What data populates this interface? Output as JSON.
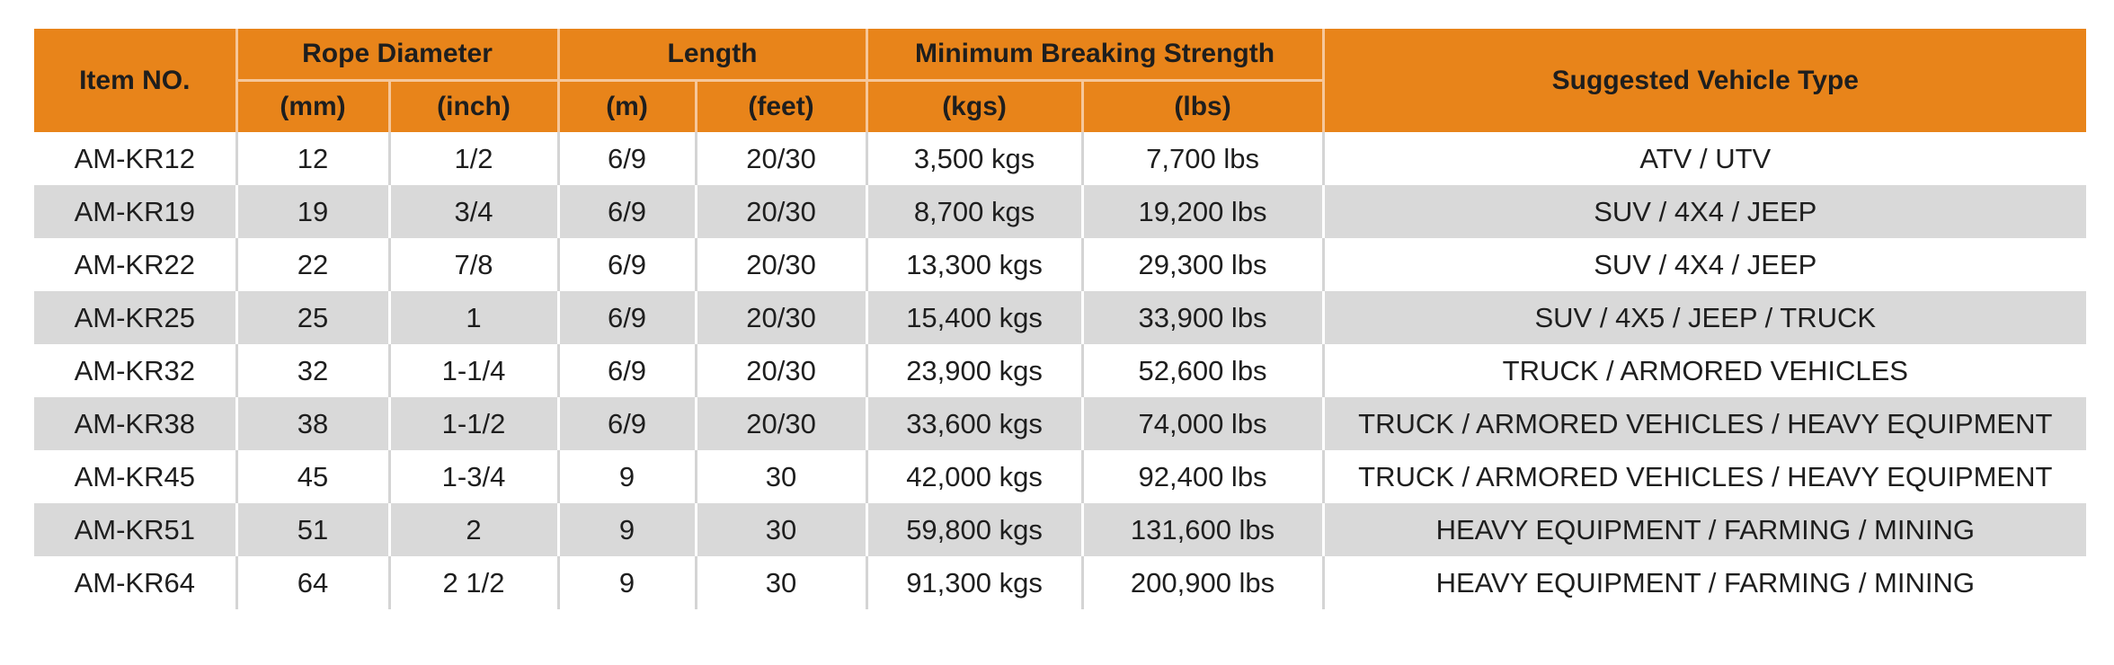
{
  "headers": {
    "item_no": "Item NO.",
    "rope_diameter": "Rope Diameter",
    "length": "Length",
    "min_breaking_strength": "Minimum Breaking Strength",
    "vehicle_type": "Suggested Vehicle Type",
    "sub": {
      "mm": "(mm)",
      "inch": "(inch)",
      "m": "(m)",
      "feet": "(feet)",
      "kgs": "(kgs)",
      "lbs": "(lbs)"
    }
  },
  "rows": [
    {
      "item": "AM-KR12",
      "mm": "12",
      "inch": "1/2",
      "m": "6/9",
      "feet": "20/30",
      "kgs": "3,500 kgs",
      "lbs": "7,700 lbs",
      "vehicle": "ATV / UTV"
    },
    {
      "item": "AM-KR19",
      "mm": "19",
      "inch": "3/4",
      "m": "6/9",
      "feet": "20/30",
      "kgs": "8,700 kgs",
      "lbs": "19,200 lbs",
      "vehicle": "SUV / 4X4 / JEEP"
    },
    {
      "item": "AM-KR22",
      "mm": "22",
      "inch": "7/8",
      "m": "6/9",
      "feet": "20/30",
      "kgs": "13,300 kgs",
      "lbs": "29,300 lbs",
      "vehicle": "SUV / 4X4 / JEEP"
    },
    {
      "item": "AM-KR25",
      "mm": "25",
      "inch": "1",
      "m": "6/9",
      "feet": "20/30",
      "kgs": "15,400 kgs",
      "lbs": "33,900 lbs",
      "vehicle": "SUV / 4X5 / JEEP / TRUCK"
    },
    {
      "item": "AM-KR32",
      "mm": "32",
      "inch": "1-1/4",
      "m": "6/9",
      "feet": "20/30",
      "kgs": "23,900 kgs",
      "lbs": "52,600 lbs",
      "vehicle": "TRUCK / ARMORED VEHICLES"
    },
    {
      "item": "AM-KR38",
      "mm": "38",
      "inch": "1-1/2",
      "m": "6/9",
      "feet": "20/30",
      "kgs": "33,600 kgs",
      "lbs": "74,000 lbs",
      "vehicle": "TRUCK / ARMORED VEHICLES / HEAVY EQUIPMENT"
    },
    {
      "item": "AM-KR45",
      "mm": "45",
      "inch": "1-3/4",
      "m": "9",
      "feet": "30",
      "kgs": "42,000 kgs",
      "lbs": "92,400 lbs",
      "vehicle": "TRUCK / ARMORED VEHICLES / HEAVY EQUIPMENT"
    },
    {
      "item": "AM-KR51",
      "mm": "51",
      "inch": "2",
      "m": "9",
      "feet": "30",
      "kgs": "59,800 kgs",
      "lbs": "131,600 lbs",
      "vehicle": "HEAVY EQUIPMENT / FARMING / MINING"
    },
    {
      "item": "AM-KR64",
      "mm": "64",
      "inch": "2 1/2",
      "m": "9",
      "feet": "30",
      "kgs": "91,300 kgs",
      "lbs": "200,900 lbs",
      "vehicle": "HEAVY EQUIPMENT / FARMING / MINING"
    }
  ],
  "colors": {
    "header_bg": "#e8841a",
    "band_bg": "#d9d9d9",
    "text": "#1e1e1e"
  }
}
